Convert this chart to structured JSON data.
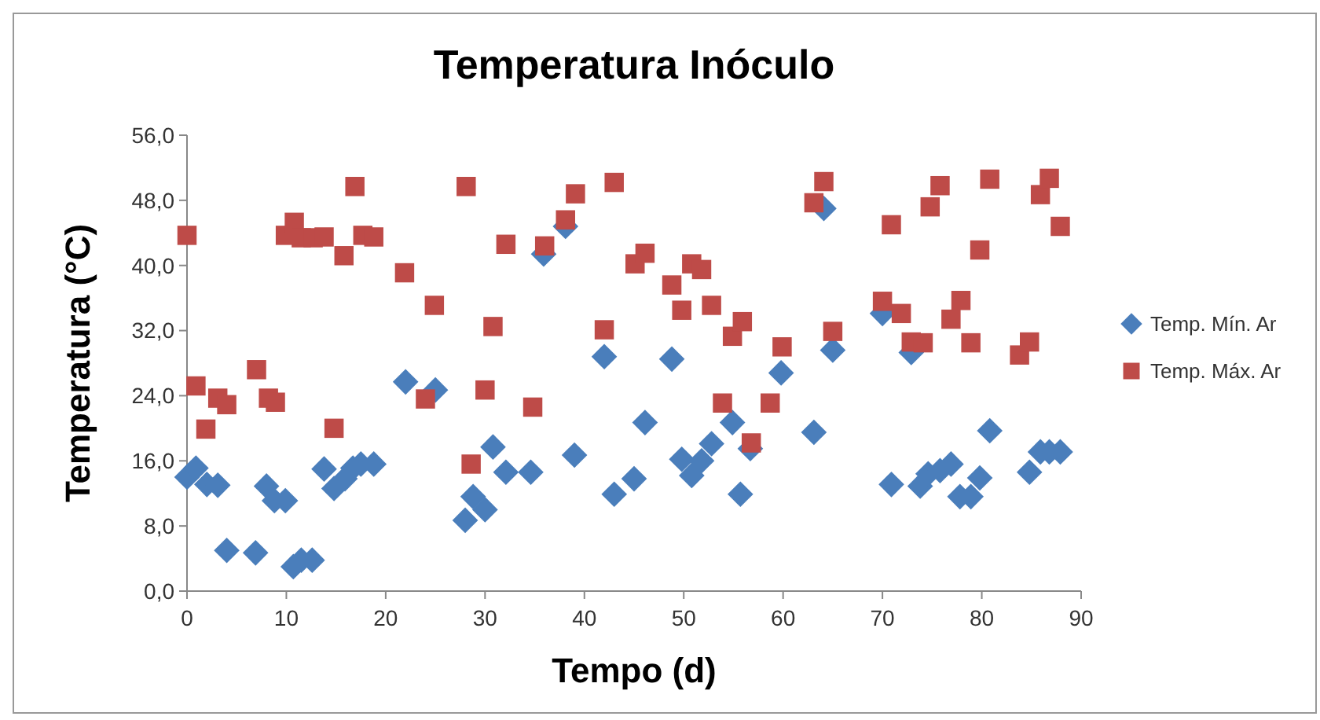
{
  "chart_data": {
    "type": "scatter",
    "title": "Temperatura Inóculo",
    "xlabel": "Tempo (d)",
    "ylabel": "Temperatura (°C)",
    "legend": "right",
    "grid": false,
    "xlim": [
      0,
      90
    ],
    "xticks": [
      0,
      10,
      20,
      30,
      40,
      50,
      60,
      70,
      80,
      90
    ],
    "ylim": [
      0,
      56
    ],
    "yticks": [
      {
        "value": 0,
        "label": "0,0"
      },
      {
        "value": 8,
        "label": "8,0"
      },
      {
        "value": 16,
        "label": "16,0"
      },
      {
        "value": 24,
        "label": "24,0"
      },
      {
        "value": 32,
        "label": "32,0"
      },
      {
        "value": 40,
        "label": "40,0"
      },
      {
        "value": 48,
        "label": "48,0"
      },
      {
        "value": 56,
        "label": "56,0"
      }
    ],
    "series": [
      {
        "name": "Temp. Mín. Ar",
        "color": "#4a7ebb",
        "marker": "diamond",
        "x": [
          0,
          0.9,
          2.0,
          3.1,
          4.0,
          6.9,
          8.0,
          8.8,
          9.9,
          10.7,
          11.5,
          12.6,
          13.8,
          14.8,
          15.9,
          16.7,
          17.5,
          18.8,
          22.0,
          25.0,
          28.0,
          28.8,
          30.0,
          30.8,
          32.1,
          34.6,
          35.9,
          38.1,
          39.0,
          42.0,
          43.0,
          45.0,
          46.1,
          48.8,
          49.8,
          50.8,
          51.8,
          52.8,
          54.9,
          55.7,
          56.7,
          59.8,
          63.1,
          64.1,
          65.0,
          70.0,
          70.9,
          72.9,
          73.8,
          74.6,
          75.8,
          76.9,
          77.8,
          78.9,
          79.8,
          80.8,
          84.8,
          85.9,
          86.8,
          87.9
        ],
        "values": [
          14.0,
          15.1,
          13.1,
          13.0,
          5.0,
          4.7,
          12.9,
          11.1,
          11.1,
          3.0,
          3.8,
          3.8,
          15.0,
          12.6,
          13.8,
          15.1,
          15.6,
          15.6,
          25.7,
          24.7,
          8.7,
          11.6,
          10.0,
          17.7,
          14.6,
          14.6,
          41.4,
          44.8,
          16.7,
          28.8,
          11.9,
          13.8,
          20.7,
          28.5,
          16.2,
          14.2,
          16.0,
          18.1,
          20.7,
          11.9,
          17.5,
          26.8,
          19.5,
          47.0,
          29.6,
          34.1,
          13.1,
          29.3,
          12.9,
          14.4,
          14.8,
          15.6,
          11.6,
          11.6,
          13.9,
          19.7,
          14.6,
          17.1,
          17.1,
          17.1
        ]
      },
      {
        "name": "Temp. Máx. Ar",
        "color": "#be4b48",
        "marker": "square",
        "x": [
          0,
          0.9,
          1.9,
          3.1,
          4.0,
          7.0,
          8.2,
          8.9,
          9.9,
          10.8,
          11.5,
          12.7,
          13.8,
          14.8,
          15.8,
          16.9,
          17.7,
          18.8,
          21.9,
          24.0,
          24.9,
          28.1,
          28.6,
          30.0,
          30.8,
          32.1,
          34.8,
          36.0,
          38.1,
          39.1,
          42.0,
          43.0,
          45.1,
          46.1,
          48.8,
          49.8,
          50.8,
          51.8,
          52.8,
          53.9,
          54.9,
          55.9,
          56.8,
          58.7,
          59.9,
          63.1,
          64.1,
          65.0,
          70.0,
          70.9,
          71.9,
          72.9,
          74.1,
          74.8,
          75.8,
          76.9,
          77.9,
          78.9,
          79.8,
          80.8,
          83.8,
          84.8,
          85.9,
          86.8,
          87.9
        ],
        "values": [
          43.7,
          25.2,
          19.9,
          23.7,
          22.9,
          27.2,
          23.7,
          23.2,
          43.7,
          45.3,
          43.4,
          43.4,
          43.5,
          20.0,
          41.2,
          49.7,
          43.7,
          43.5,
          39.1,
          23.6,
          35.1,
          49.7,
          15.6,
          24.7,
          32.5,
          42.6,
          22.6,
          42.4,
          45.6,
          48.8,
          32.1,
          50.2,
          40.2,
          41.5,
          37.6,
          34.5,
          40.2,
          39.5,
          35.1,
          23.1,
          31.3,
          33.1,
          18.2,
          23.1,
          30.0,
          47.7,
          50.3,
          31.9,
          35.6,
          45.0,
          34.1,
          30.6,
          30.5,
          47.2,
          49.8,
          33.4,
          35.7,
          30.5,
          41.9,
          50.6,
          29.0,
          30.6,
          48.7,
          50.7,
          44.8
        ]
      }
    ]
  }
}
